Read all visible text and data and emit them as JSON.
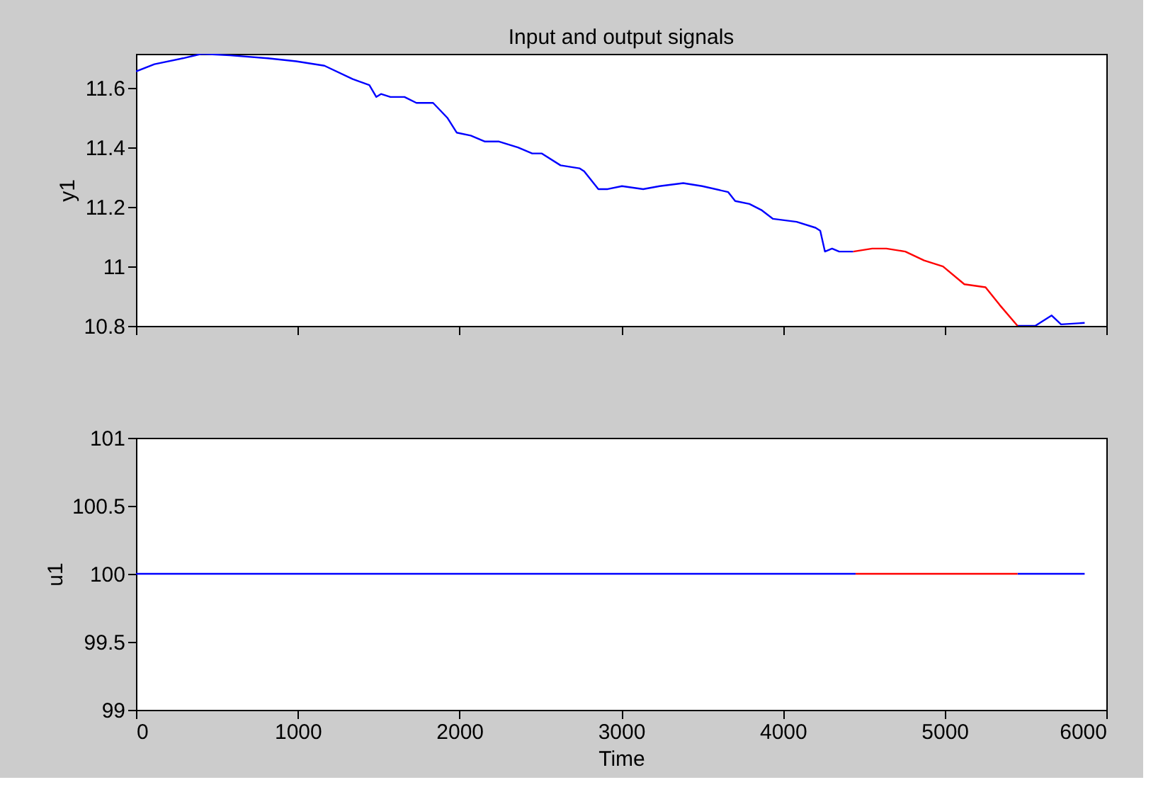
{
  "chart_data": [
    {
      "type": "line",
      "title": "Input and output signals",
      "ylabel": "y1",
      "xlim": [
        0,
        6000
      ],
      "xticks": [
        0,
        1000,
        2000,
        3000,
        4000,
        5000,
        6000
      ],
      "ylim": [
        10.8,
        11.715
      ],
      "yticks": [
        10.8,
        11,
        11.2,
        11.4,
        11.6
      ],
      "tick_labels": "y",
      "grid": false,
      "series": [
        {
          "color": "#0000ff",
          "x": [
            0,
            114,
            289,
            406,
            581,
            815,
            990,
            1165,
            1340,
            1443,
            1486,
            1515,
            1573,
            1660,
            1734,
            1837,
            1925,
            1983,
            2070,
            2158,
            2245,
            2362,
            2450,
            2508,
            2625,
            2742,
            2771,
            2859,
            2917,
            3005,
            3136,
            3238,
            3384,
            3501,
            3662,
            3705,
            3793,
            3866,
            3939,
            4085,
            4202,
            4231,
            4260,
            4304,
            4348,
            4435,
            4900,
            5451,
            5560,
            5662,
            5720,
            5866
          ],
          "values": [
            11.656,
            11.68,
            11.7,
            11.715,
            11.71,
            11.7,
            11.69,
            11.675,
            11.63,
            11.61,
            11.57,
            11.58,
            11.57,
            11.57,
            11.55,
            11.55,
            11.5,
            11.45,
            11.44,
            11.42,
            11.42,
            11.4,
            11.38,
            11.38,
            11.34,
            11.33,
            11.32,
            11.26,
            11.26,
            11.27,
            11.26,
            11.27,
            11.28,
            11.27,
            11.25,
            11.22,
            11.21,
            11.19,
            11.16,
            11.15,
            11.13,
            11.12,
            11.05,
            11.06,
            11.05,
            11.05,
            null,
            10.8,
            10.8,
            10.835,
            10.805,
            10.81
          ]
        },
        {
          "color": "#ff0000",
          "x": [
            4435,
            4552,
            4640,
            4757,
            4873,
            4990,
            5122,
            5253,
            5341,
            5451
          ],
          "values": [
            11.05,
            11.06,
            11.06,
            11.05,
            11.02,
            11.0,
            10.94,
            10.93,
            10.87,
            10.8
          ]
        }
      ]
    },
    {
      "type": "line",
      "xlabel": "Time",
      "ylabel": "u1",
      "xlim": [
        0,
        6000
      ],
      "xticks": [
        0,
        1000,
        2000,
        3000,
        4000,
        5000,
        6000
      ],
      "ylim": [
        99,
        101
      ],
      "yticks": [
        99,
        99.5,
        100,
        100.5,
        101
      ],
      "grid": false,
      "series": [
        {
          "color": "#0000ff",
          "x": [
            0,
            4450,
            4900,
            5451,
            5866
          ],
          "values": [
            100,
            100,
            null,
            100,
            100
          ]
        },
        {
          "color": "#ff0000",
          "x": [
            4450,
            5451
          ],
          "values": [
            100,
            100
          ]
        }
      ]
    }
  ]
}
